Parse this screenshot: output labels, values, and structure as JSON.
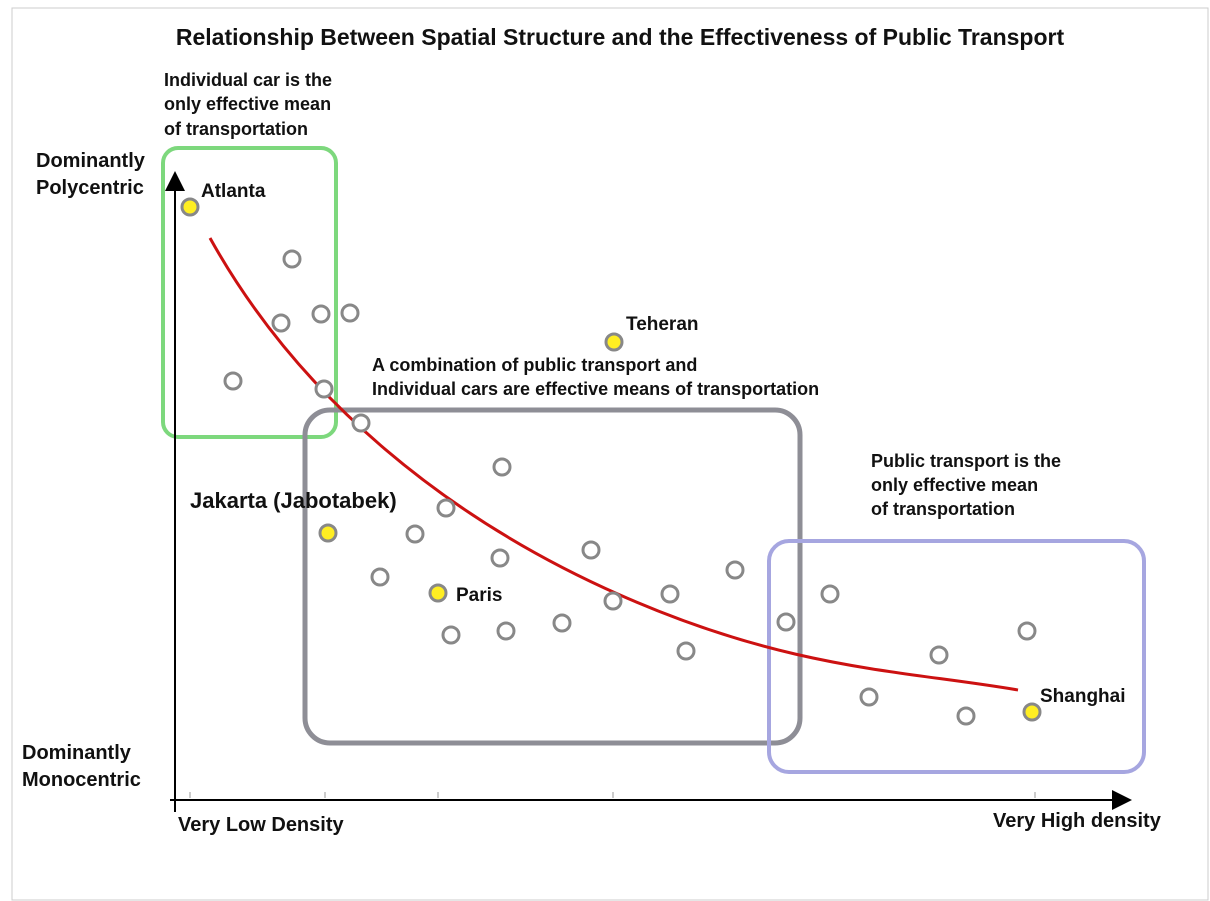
{
  "title": "Relationship Between Spatial Structure and the Effectiveness of Public Transport",
  "y_axis": {
    "top": [
      "Dominantly",
      "Polycentric"
    ],
    "bottom": [
      "Dominantly",
      "Monocentric"
    ]
  },
  "x_axis": {
    "left": "Very Low Density",
    "right": "Very High density"
  },
  "annotations": [
    {
      "lines": [
        "Individual car is the",
        "only effective mean",
        "of transportation"
      ]
    },
    {
      "lines": [
        "A combination of public transport and",
        "Individual cars are effective means of transportation"
      ]
    },
    {
      "lines": [
        "Public transport is the",
        "only effective mean",
        "of transportation"
      ]
    }
  ],
  "cities": [
    "Atlanta",
    "Teheran",
    "Jakarta (Jabotabek)",
    "Paris",
    "Shanghai"
  ]
}
